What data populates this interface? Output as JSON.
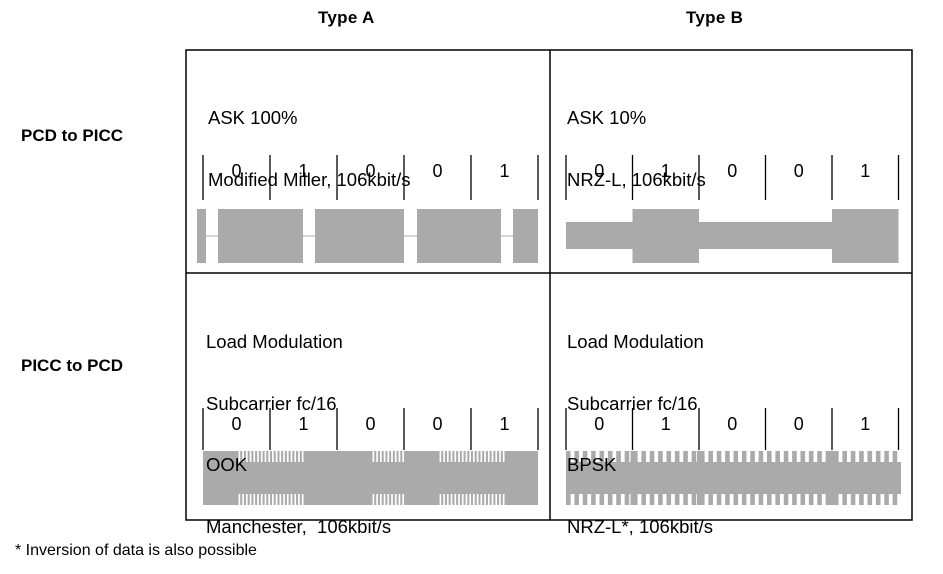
{
  "columns": [
    "Type A",
    "Type B"
  ],
  "rows": [
    "PCD to PICC",
    "PICC to PCD"
  ],
  "cells": {
    "a_pcd": [
      "ASK 100%",
      "Modified Miller, 106kbit/s"
    ],
    "b_pcd": [
      "ASK 10%",
      "NRZ-L, 106kbit/s"
    ],
    "a_picc": [
      "Load Modulation",
      "Subcarrier fc/16",
      "OOK",
      "Manchester,  106kbit/s"
    ],
    "b_picc": [
      "Load Modulation",
      "Subcarrier fc/16",
      "BPSK",
      "NRZ-L*, 106kbit/s"
    ]
  },
  "bits": [
    "0",
    "1",
    "0",
    "0",
    "1"
  ],
  "footnote": "* Inversion of data is also possible",
  "colors": {
    "signal": "#aaaaaa",
    "line": "#000000"
  }
}
